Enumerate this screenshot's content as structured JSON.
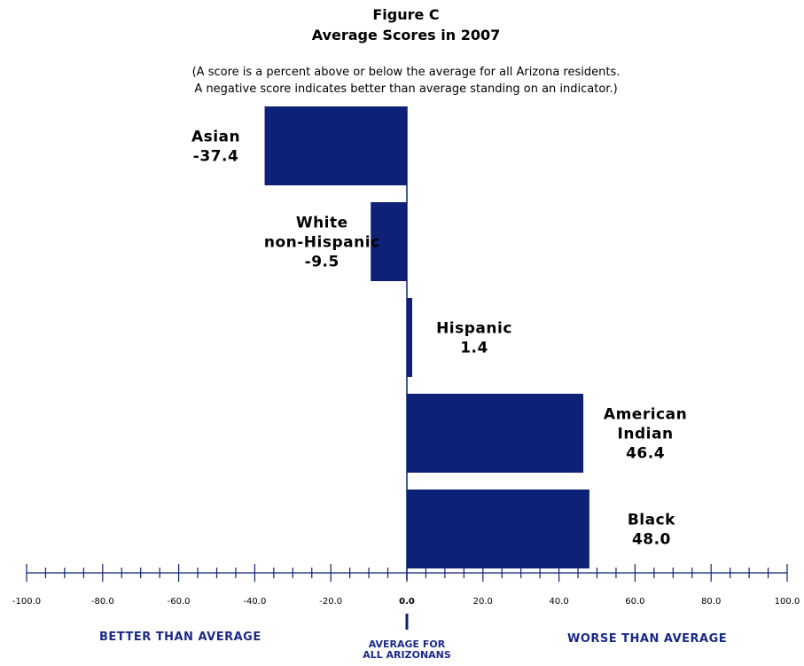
{
  "figure_label": "Figure C",
  "title": "Average Scores in 2007",
  "note_line1": "(A score is a percent above or below the average for all Arizona residents.",
  "note_line2": "A negative score indicates better than average standing on an indicator.)",
  "better_label": "BETTER THAN AVERAGE",
  "worse_label": "WORSE THAN AVERAGE",
  "avg_label_line1": "AVERAGE FOR",
  "avg_label_line2": "ALL ARIZONANS",
  "colors": {
    "bar": "#0d2177",
    "axis": "#0d2177",
    "region_text": "#1a2a8a"
  },
  "chart_data": {
    "type": "bar",
    "orientation": "horizontal",
    "categories": [
      "Asian",
      "White non-Hispanic",
      "Hispanic",
      "American Indian",
      "Black"
    ],
    "category_label_lines": [
      [
        "Asian"
      ],
      [
        "White",
        "non-Hispanic"
      ],
      [
        "Hispanic"
      ],
      [
        "American",
        "Indian"
      ],
      [
        "Black"
      ]
    ],
    "values": [
      -37.4,
      -9.5,
      1.4,
      46.4,
      48.0
    ],
    "value_labels": [
      "-37.4",
      "-9.5",
      "1.4",
      "46.4",
      "48.0"
    ],
    "xlim": [
      -100,
      100
    ],
    "x_ticks": [
      "-100.0",
      "-80.0",
      "-60.0",
      "-40.0",
      "-20.0",
      "0.0",
      "20.0",
      "40.0",
      "60.0",
      "80.0",
      "100.0"
    ],
    "minor_tick_step": 5,
    "grid": false,
    "title": "Average Scores in 2007"
  }
}
